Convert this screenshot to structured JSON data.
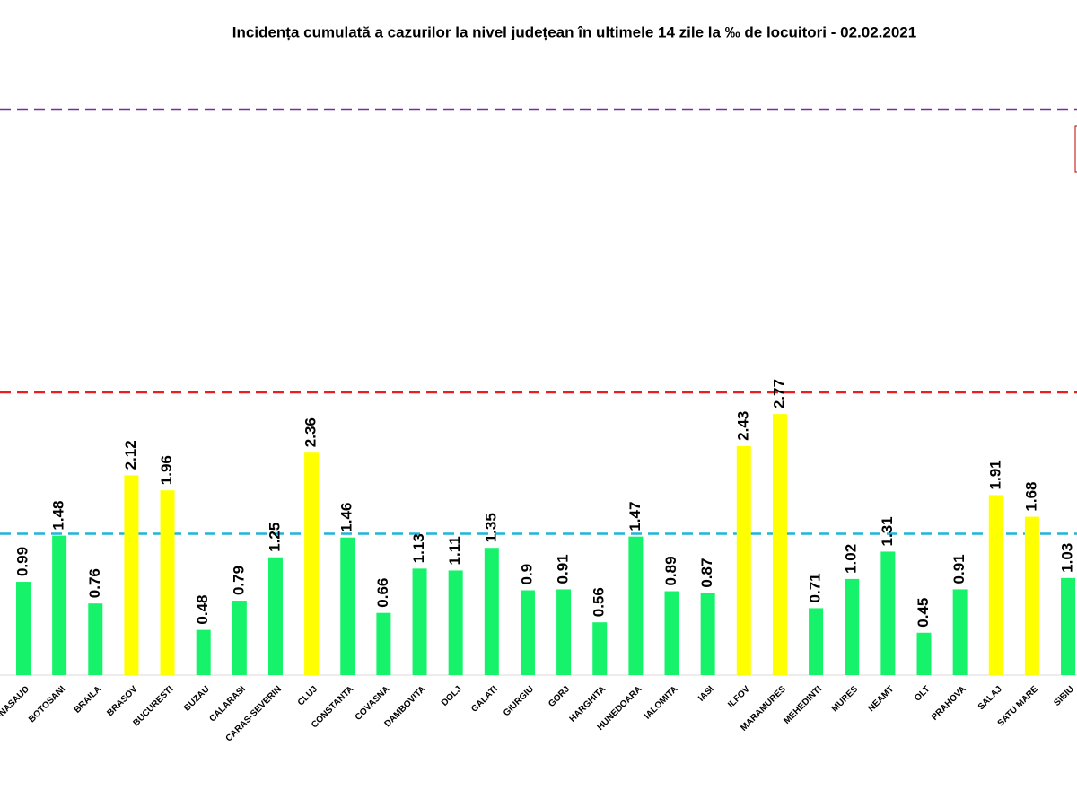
{
  "chart_data": {
    "type": "bar",
    "title": "Incidența cumulată a cazurilor la nivel județean în ultimele 14 zile   la ‰ de locuitori  - 02.02.2021",
    "categories": [
      "BISTRITA-NASAUD",
      "BOTOSANI",
      "BRAILA",
      "BRASOV",
      "BUCURESTI",
      "BUZAU",
      "CALARASI",
      "CARAS-SEVERIN",
      "CLUJ",
      "CONSTANTA",
      "COVASNA",
      "DAMBOVITA",
      "DOLJ",
      "GALATI",
      "GIURGIU",
      "GORJ",
      "HARGHITA",
      "HUNEDOARA",
      "IALOMITA",
      "IASI",
      "ILFOV",
      "MARAMURES",
      "MEHEDINTI",
      "MURES",
      "NEAMT",
      "OLT",
      "PRAHOVA",
      "SALAJ",
      "SATU MARE",
      "SIBIU"
    ],
    "values": [
      0.99,
      1.48,
      0.76,
      2.12,
      1.96,
      0.48,
      0.79,
      1.25,
      2.36,
      1.46,
      0.66,
      1.13,
      1.11,
      1.35,
      0.9,
      0.91,
      0.56,
      1.47,
      0.89,
      0.87,
      2.43,
      2.77,
      0.71,
      1.02,
      1.31,
      0.45,
      0.91,
      1.91,
      1.68,
      1.03
    ],
    "colors": [
      "#17f26b",
      "#17f26b",
      "#17f26b",
      "#ffff00",
      "#ffff00",
      "#17f26b",
      "#17f26b",
      "#17f26b",
      "#ffff00",
      "#17f26b",
      "#17f26b",
      "#17f26b",
      "#17f26b",
      "#17f26b",
      "#17f26b",
      "#17f26b",
      "#17f26b",
      "#17f26b",
      "#17f26b",
      "#17f26b",
      "#ffff00",
      "#ffff00",
      "#17f26b",
      "#17f26b",
      "#17f26b",
      "#17f26b",
      "#17f26b",
      "#ffff00",
      "#ffff00",
      "#17f26b"
    ],
    "reference_lines": [
      {
        "value": 1.5,
        "color": "#1fb4d8"
      },
      {
        "value": 3,
        "color": "#ee1c1c"
      },
      {
        "value": 6,
        "color": "#7030a0"
      }
    ],
    "ylim": [
      0,
      6.5
    ]
  }
}
